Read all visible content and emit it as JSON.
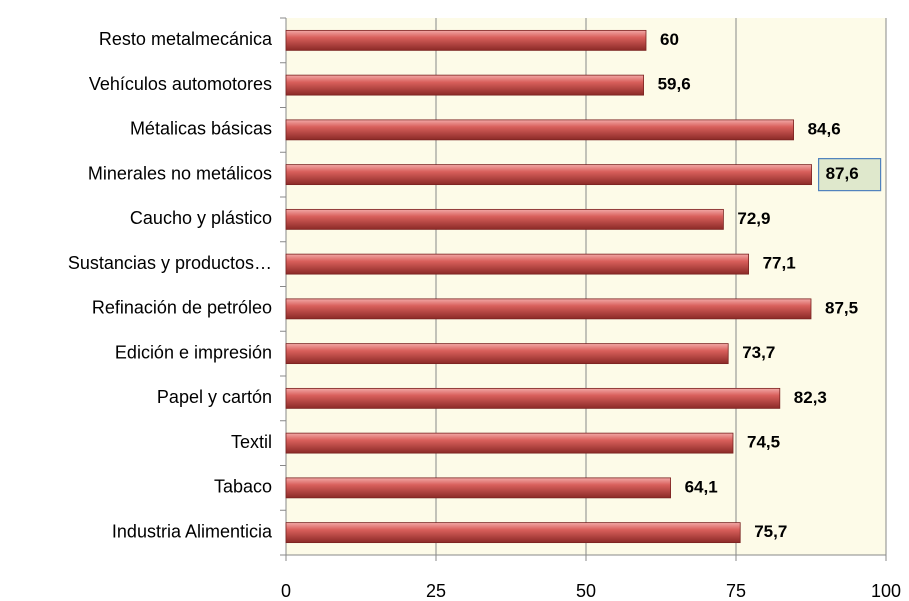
{
  "chart_data": {
    "type": "hbar",
    "categories": [
      "Resto metalmecánica",
      "Vehículos automotores",
      "Métalicas básicas",
      "Minerales no metálicos",
      "Caucho y plástico",
      "Sustancias y productos…",
      "Refinación de petróleo",
      "Edición e impresión",
      "Papel y cartón",
      "Textil",
      "Tabaco",
      "Industria Alimenticia"
    ],
    "values": [
      60,
      59.6,
      84.6,
      87.6,
      72.9,
      77.1,
      87.5,
      73.7,
      82.3,
      74.5,
      64.1,
      75.7
    ],
    "value_labels": [
      "60",
      "59,6",
      "84,6",
      "87,6",
      "72,9",
      "77,1",
      "87,5",
      "73,7",
      "82,3",
      "74,5",
      "64,1",
      "75,7"
    ],
    "color": "#c0504d",
    "highlight": 3,
    "xlim": [
      0,
      100
    ],
    "xticks": [
      0,
      25,
      50,
      75,
      100
    ],
    "grid": true
  }
}
